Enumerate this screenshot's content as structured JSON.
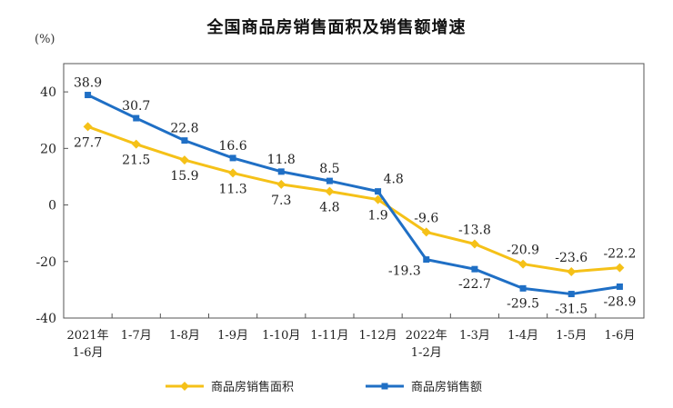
{
  "chart_data": {
    "type": "line",
    "title": "全国商品房销售面积及销售额增速",
    "ylabel": "(%)",
    "ylim": [
      -40,
      50
    ],
    "yticks": [
      40,
      20,
      0,
      -20,
      -40
    ],
    "categories": [
      {
        "line1": "2021年",
        "line2": "1-6月"
      },
      {
        "line1": "1-7月",
        "line2": ""
      },
      {
        "line1": "1-8月",
        "line2": ""
      },
      {
        "line1": "1-9月",
        "line2": ""
      },
      {
        "line1": "1-10月",
        "line2": ""
      },
      {
        "line1": "1-11月",
        "line2": ""
      },
      {
        "line1": "1-12月",
        "line2": ""
      },
      {
        "line1": "2022年",
        "line2": "1-2月"
      },
      {
        "line1": "1-3月",
        "line2": ""
      },
      {
        "line1": "1-4月",
        "line2": ""
      },
      {
        "line1": "1-5月",
        "line2": ""
      },
      {
        "line1": "1-6月",
        "line2": ""
      }
    ],
    "series": [
      {
        "name": "商品房销售面积",
        "color": "#F5C118",
        "marker": "diamond",
        "values": [
          27.7,
          21.5,
          15.9,
          11.3,
          7.3,
          4.8,
          1.9,
          -9.6,
          -13.8,
          -20.9,
          -23.6,
          -22.2
        ],
        "labels": [
          "27.7",
          "21.5",
          "15.9",
          "11.3",
          "7.3",
          "4.8",
          "1.9",
          "-9.6",
          "-13.8",
          "-20.9",
          "-23.6",
          "-22.2"
        ]
      },
      {
        "name": "商品房销售额",
        "color": "#1F6FC5",
        "marker": "square",
        "values": [
          38.9,
          30.7,
          22.8,
          16.6,
          11.8,
          8.5,
          4.8,
          -19.3,
          -22.7,
          -29.5,
          -31.5,
          -28.9
        ],
        "labels": [
          "38.9",
          "30.7",
          "22.8",
          "16.6",
          "11.8",
          "8.5",
          "4.8",
          "-19.3",
          "-22.7",
          "-29.5",
          "-31.5",
          "-28.9"
        ]
      }
    ],
    "legend_position": "bottom",
    "grid": false
  }
}
